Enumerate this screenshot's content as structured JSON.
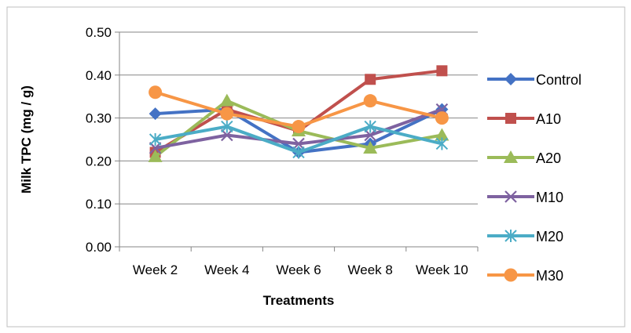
{
  "chart_data": {
    "type": "line",
    "title": "",
    "xlabel": "Treatments",
    "ylabel": "Milk TPC (mg / g)",
    "categories": [
      "Week 2",
      "Week 4",
      "Week 6",
      "Week 8",
      "Week 10"
    ],
    "ylim": [
      0,
      0.5
    ],
    "yticks": [
      0.0,
      0.1,
      0.2,
      0.3,
      0.4,
      0.5
    ],
    "ytick_labels": [
      "0.00",
      "0.10",
      "0.20",
      "0.30",
      "0.40",
      "0.50"
    ],
    "grid": "horizontal",
    "legend_position": "right",
    "series": [
      {
        "name": "Control",
        "color": "#4472C4",
        "marker": "diamond",
        "values": [
          0.31,
          0.32,
          0.22,
          0.24,
          0.32
        ]
      },
      {
        "name": "A10",
        "color": "#C0504D",
        "marker": "square",
        "values": [
          0.22,
          0.32,
          0.27,
          0.39,
          0.41
        ]
      },
      {
        "name": "A20",
        "color": "#9BBB59",
        "marker": "triangle",
        "values": [
          0.21,
          0.34,
          0.27,
          0.23,
          0.26
        ]
      },
      {
        "name": "M10",
        "color": "#7E62A0",
        "marker": "x",
        "values": [
          0.23,
          0.26,
          0.24,
          0.26,
          0.32
        ]
      },
      {
        "name": "M20",
        "color": "#4BACC6",
        "marker": "asterisk",
        "values": [
          0.25,
          0.28,
          0.22,
          0.28,
          0.24
        ]
      },
      {
        "name": "M30",
        "color": "#F79646",
        "marker": "circle",
        "values": [
          0.36,
          0.31,
          0.28,
          0.34,
          0.3
        ]
      }
    ]
  }
}
